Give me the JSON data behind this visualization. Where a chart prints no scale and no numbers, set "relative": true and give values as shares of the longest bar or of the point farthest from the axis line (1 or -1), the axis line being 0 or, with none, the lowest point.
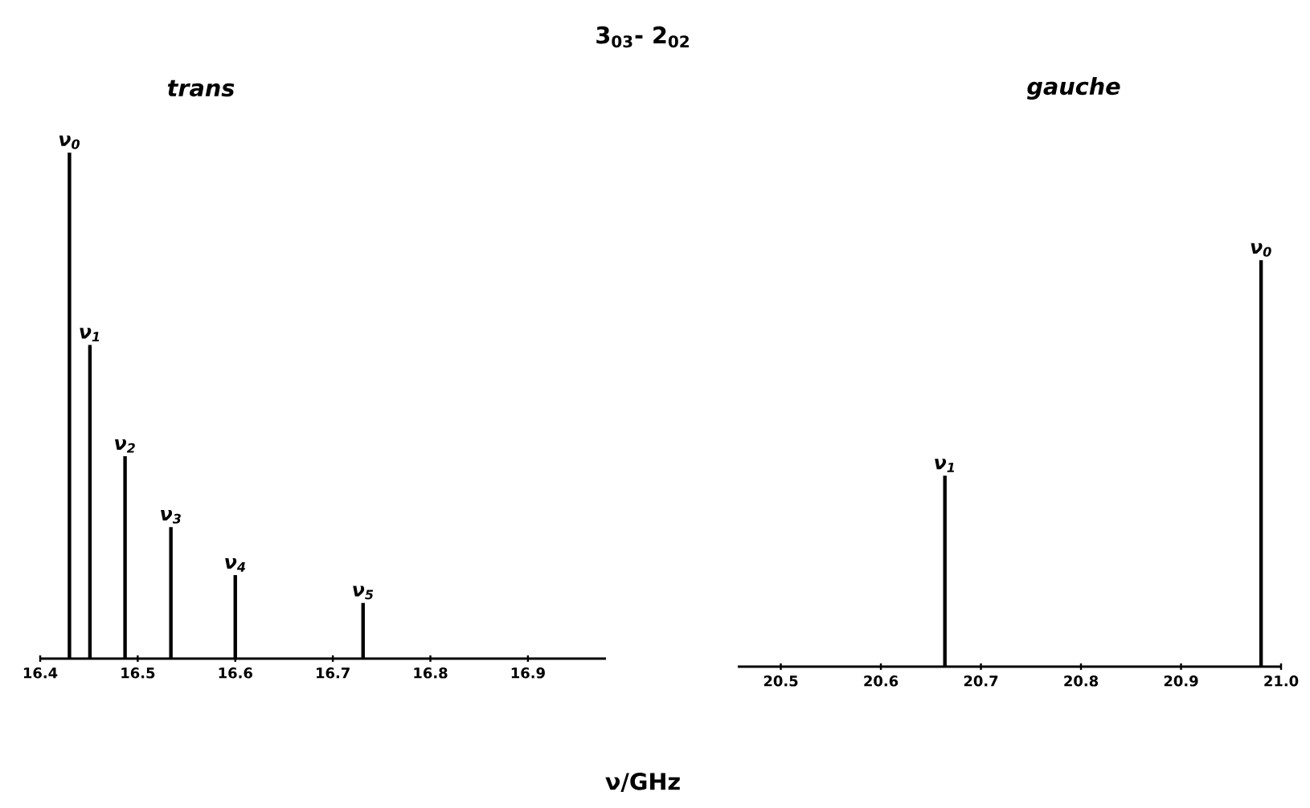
{
  "chart_data": [
    {
      "type": "bar",
      "title": "3$_{03}$- 2$_{02}$",
      "subtitle": "trans",
      "xlabel": "ν/GHz",
      "relative": true,
      "color": "#000000",
      "x": [
        16.43,
        16.451,
        16.487,
        16.534,
        16.6,
        16.731
      ],
      "values": [
        1,
        0.62,
        0.4,
        0.26,
        0.165,
        0.11
      ],
      "xlim": [
        16.4,
        16.98
      ],
      "xticks": [
        {
          "value": 16.4,
          "label": "16.4"
        },
        {
          "value": 16.5,
          "label": "16.5"
        },
        {
          "value": 16.6,
          "label": "16.6"
        },
        {
          "value": 16.7,
          "label": "16.7"
        },
        {
          "value": 16.8,
          "label": "16.8"
        },
        {
          "value": 16.9,
          "label": "16.9"
        }
      ],
      "annotations": [
        {
          "text": "ν$_{0}$",
          "x": 16.43,
          "y": 1
        },
        {
          "text": "ν$_{1}$",
          "x": 16.451,
          "y": 0.62
        },
        {
          "text": "ν$_{2}$",
          "x": 16.487,
          "y": 0.4
        },
        {
          "text": "ν$_{3}$",
          "x": 16.534,
          "y": 0.26
        },
        {
          "text": "ν$_{4}$",
          "x": 16.6,
          "y": 0.165
        },
        {
          "text": "ν$_{5}$",
          "x": 16.731,
          "y": 0.11
        }
      ]
    },
    {
      "type": "bar",
      "subtitle": "gauche",
      "relative": true,
      "color": "#000000",
      "x": [
        20.664,
        20.98
      ],
      "values": [
        0.47,
        1
      ],
      "xlim": [
        20.457,
        21.0
      ],
      "xticks": [
        {
          "value": 20.5,
          "label": "20.5"
        },
        {
          "value": 20.6,
          "label": "20.6"
        },
        {
          "value": 20.7,
          "label": "20.7"
        },
        {
          "value": 20.8,
          "label": "20.8"
        },
        {
          "value": 20.9,
          "label": "20.9"
        },
        {
          "value": 21.0,
          "label": "21.0"
        }
      ],
      "annotations": [
        {
          "text": "ν$_{1}$",
          "x": 20.664,
          "y": 0.47
        },
        {
          "text": "ν$_{0}$",
          "x": 20.98,
          "y": 1
        }
      ]
    }
  ]
}
